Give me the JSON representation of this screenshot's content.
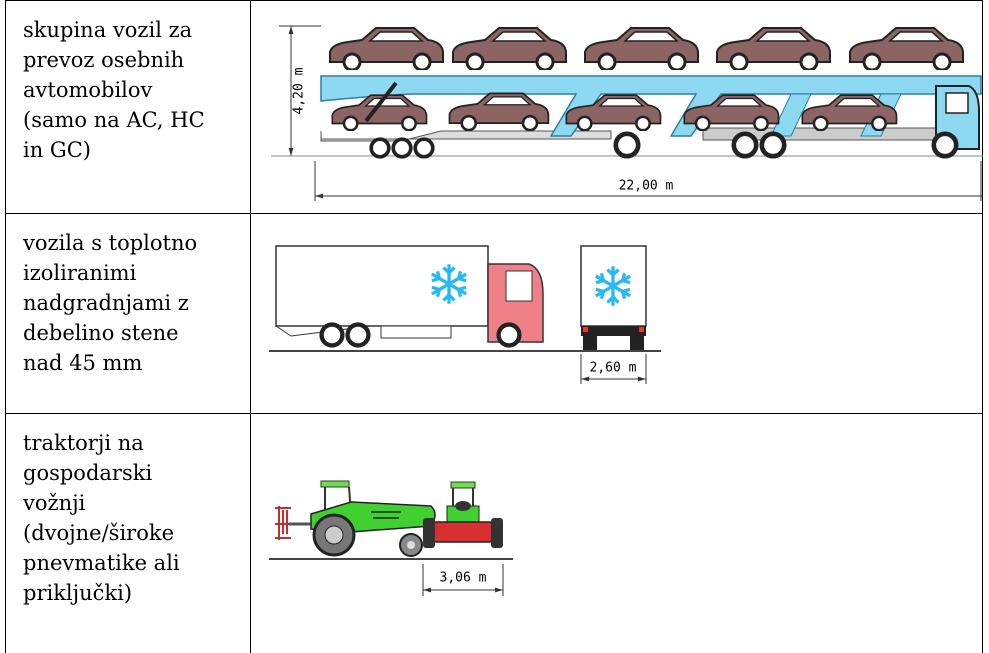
{
  "table": {
    "rows": [
      {
        "description": [
          "skupina vozil za",
          "prevoz osebnih",
          "avtomobilov",
          "(samo na AC, HC",
          "in GC)"
        ],
        "dimensions": [
          "4,20 m",
          "22,00 m"
        ]
      },
      {
        "description": [
          "vozila s toplotno",
          "izoliranimi",
          "nadgradnjami z",
          "debelino stene",
          "nad 45 mm"
        ],
        "dimensions": [
          "2,60 m"
        ]
      },
      {
        "description": [
          "traktorji na",
          "gospodarski",
          "vožnji",
          "(dvojne/široke",
          "pnevmatike ali",
          "priključki)"
        ],
        "dimensions": [
          "3,06 m"
        ]
      }
    ]
  }
}
